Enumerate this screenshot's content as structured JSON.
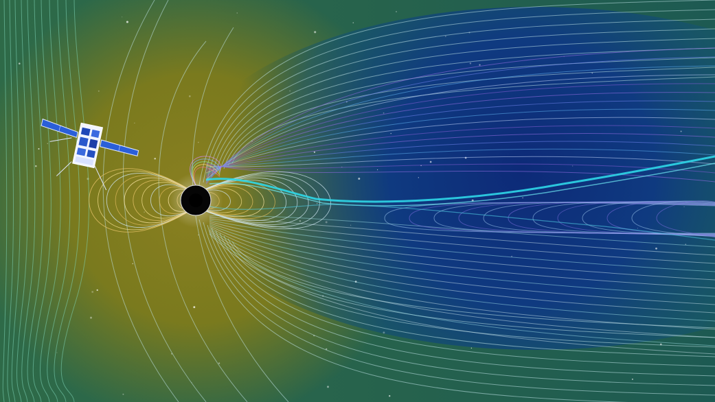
{
  "scene": {
    "subject": "cubesat-in-earth-magnetosphere",
    "colors": {
      "outer_green": "#2f6e4a",
      "dayside_olive": "#7d7a1c",
      "tail_navy": "#0b2f78",
      "tail_deep": "#12206b",
      "current_sheet_cyan": "#2fd7e8",
      "field_line_light": "#cfe6f0",
      "field_line_yellow": "#e8d48a",
      "field_line_purple": "#9a6be0",
      "planet_black": "#050505",
      "satellite_panel_blue": "#2a5fd8"
    },
    "icons": [
      "earth-icon",
      "satellite-icon"
    ]
  }
}
